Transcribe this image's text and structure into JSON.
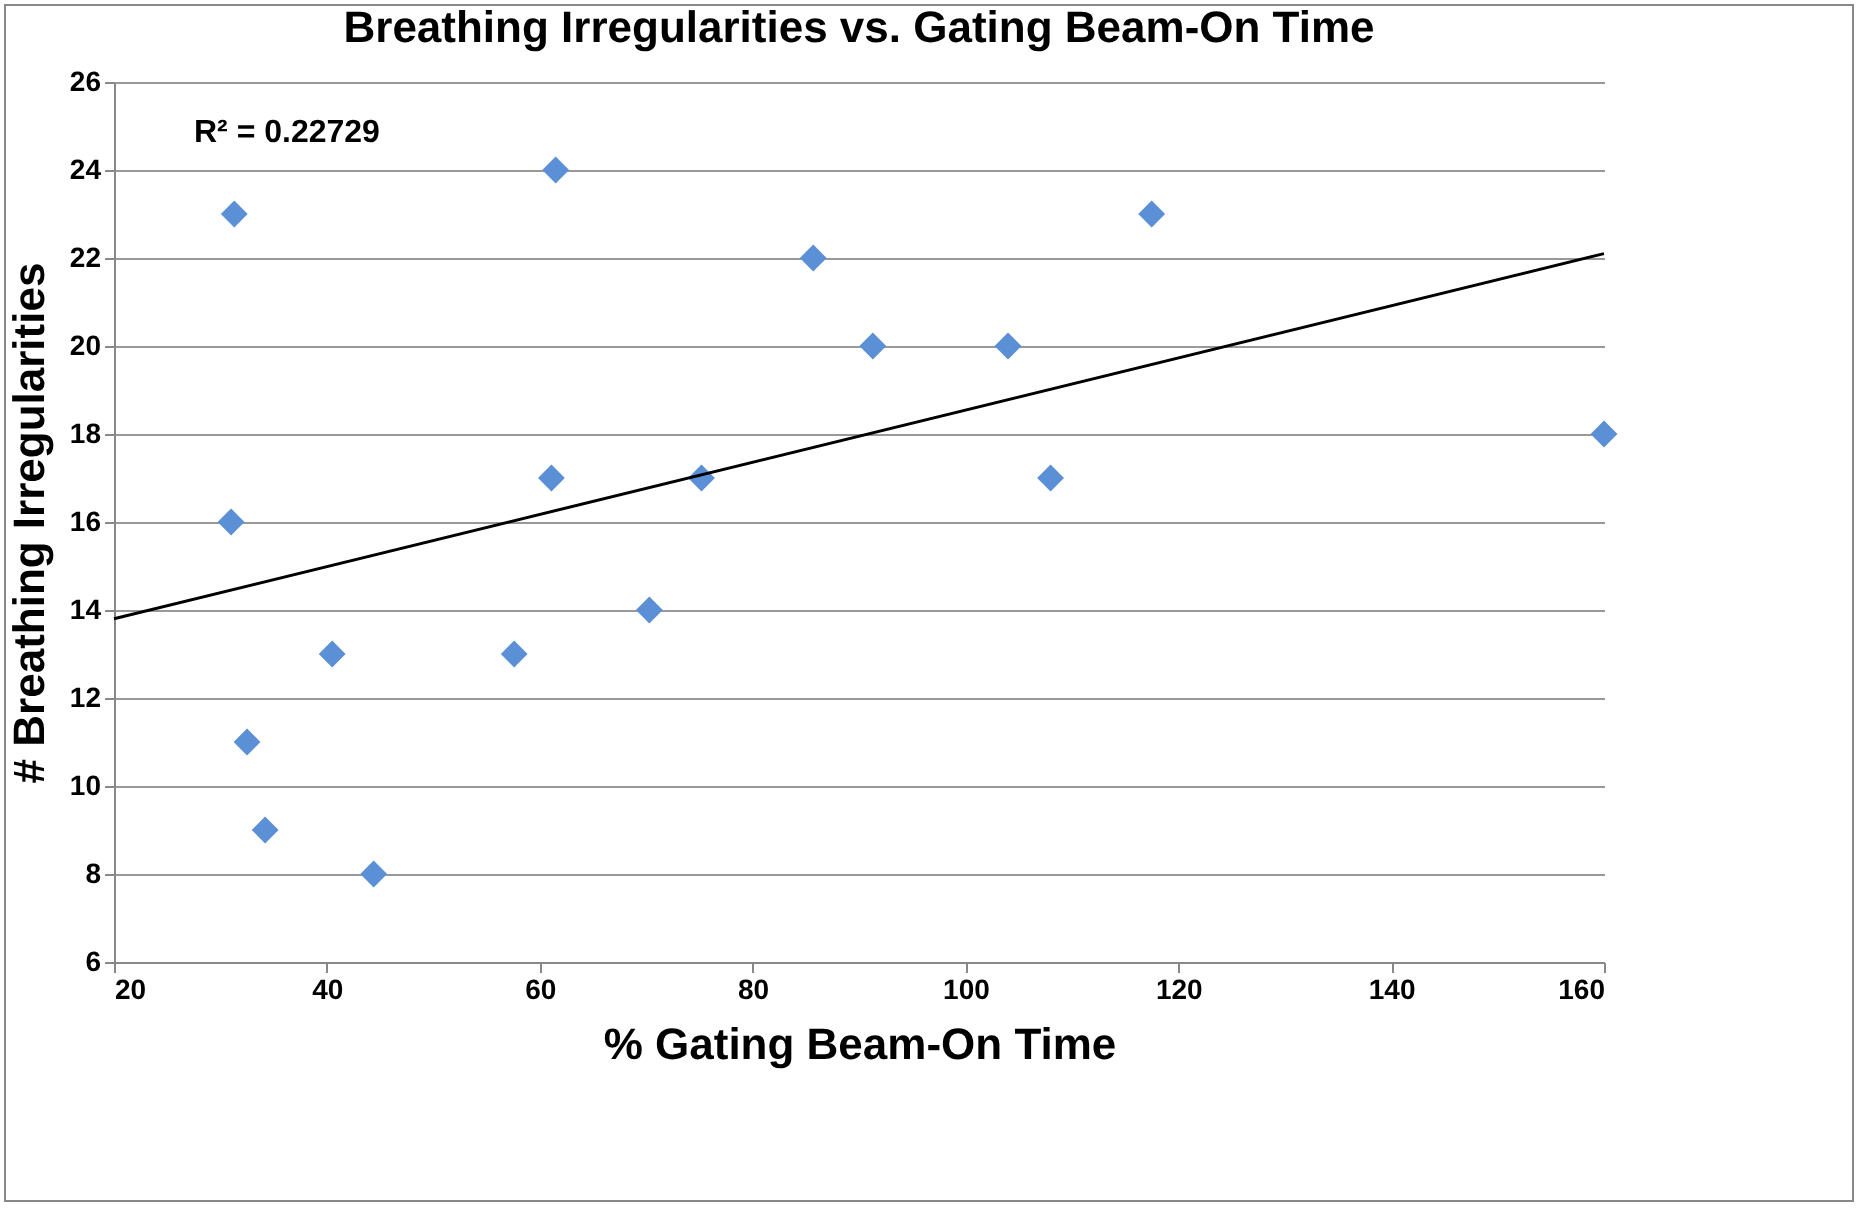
{
  "chart_data": {
    "type": "scatter",
    "title": "Breathing Irregularities vs. Gating Beam-On Time",
    "xlabel": "% Gating Beam-On Time",
    "ylabel": "# Breathing Irregularities",
    "annotations": [
      "R² = 0.22729"
    ],
    "xlim": [
      20,
      160
    ],
    "xticks": [
      20,
      40,
      60,
      80,
      100,
      120,
      140,
      160
    ],
    "ylim": [
      6,
      26
    ],
    "yticks": [
      6,
      8,
      10,
      12,
      14,
      16,
      18,
      20,
      22,
      24,
      26
    ],
    "grid": "y",
    "series": [
      {
        "type": "scatter",
        "marker": "diamond",
        "color": "#5b8fd6",
        "x": [
          31.3,
          61.5,
          85.7,
          91.3,
          104,
          117.5,
          160,
          108,
          75.2,
          61.1,
          31,
          70.3,
          40.5,
          57.6,
          32.5,
          34.2,
          44.4
        ],
        "values": [
          23,
          24,
          22,
          20,
          20,
          23,
          18,
          17,
          17,
          17,
          16,
          14,
          13,
          13,
          11,
          9,
          8
        ]
      },
      {
        "type": "line",
        "color": "#000000",
        "line_style": "solid",
        "x": [
          20,
          160
        ],
        "values": [
          13.8,
          22.1
        ]
      }
    ]
  }
}
